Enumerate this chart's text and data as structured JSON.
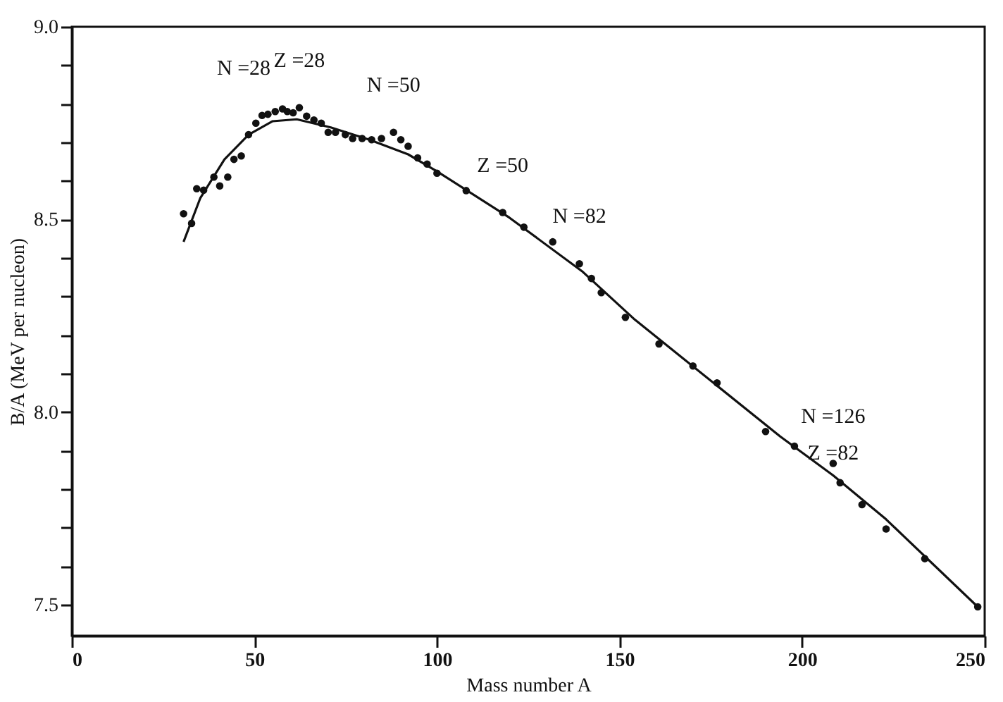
{
  "chart_data": {
    "type": "scatter",
    "xlabel": "Mass number A",
    "ylabel": "B/A (MeV per nucleon)",
    "xlim": [
      0,
      250
    ],
    "xticks": [
      0,
      50,
      100,
      150,
      200,
      250
    ],
    "ylim": [
      7.42,
      9.0
    ],
    "yticks": [
      7.5,
      {
        "value": 7.6,
        "label": null
      },
      {
        "value": 7.7,
        "label": null
      },
      {
        "value": 7.8,
        "label": null
      },
      {
        "value": 7.9,
        "label": null
      },
      "8.0",
      {
        "value": 8.1,
        "label": null
      },
      {
        "value": 8.2,
        "label": null
      },
      {
        "value": 8.3,
        "label": null
      },
      {
        "value": 8.4,
        "label": null
      },
      8.5,
      {
        "value": 8.6,
        "label": null
      },
      {
        "value": 8.7,
        "label": null
      },
      {
        "value": 8.8,
        "label": null
      },
      {
        "value": 8.9,
        "label": null
      },
      "9.0"
    ],
    "grid": false,
    "series": [
      {
        "type": "scatter",
        "marker": "circle",
        "color": "#111111",
        "x": [
          30.6,
          32.8,
          34.2,
          36.1,
          38.9,
          40.5,
          42.7,
          44.4,
          46.4,
          48.4,
          50.4,
          52.1,
          53.7,
          55.7,
          57.7,
          59,
          60.6,
          62.3,
          64.3,
          66.3,
          68.3,
          70.2,
          72.2,
          74.9,
          76.9,
          79.5,
          82.1,
          84.8,
          88.1,
          90.1,
          92.1,
          94.7,
          97.3,
          100,
          108,
          118,
          123.8,
          131.7,
          139,
          142.3,
          145,
          151.6,
          160.8,
          170.1,
          176.7,
          190,
          197.9,
          208.5,
          210.4,
          216.4,
          223,
          233.6,
          248.1
        ],
        "values": [
          8.515,
          8.49,
          8.58,
          8.576,
          8.61,
          8.587,
          8.61,
          8.656,
          8.665,
          8.72,
          8.75,
          8.77,
          8.773,
          8.78,
          8.787,
          8.78,
          8.777,
          8.79,
          8.768,
          8.758,
          8.75,
          8.726,
          8.726,
          8.72,
          8.71,
          8.71,
          8.707,
          8.71,
          8.726,
          8.707,
          8.69,
          8.66,
          8.644,
          8.62,
          8.575,
          8.518,
          8.48,
          8.442,
          8.385,
          8.347,
          8.31,
          8.246,
          8.177,
          8.12,
          8.076,
          7.95,
          7.912,
          7.867,
          7.817,
          7.76,
          7.697,
          7.62,
          7.495
        ]
      },
      {
        "type": "line",
        "line_style": "solid",
        "color": "#111111",
        "x": [
          30.6,
          35.2,
          41.8,
          48.4,
          55,
          61.6,
          70.9,
          81.5,
          92.1,
          100,
          119.8,
          139.7,
          154.2,
          194,
          208.5,
          223,
          248.1
        ],
        "values": [
          8.442,
          8.556,
          8.656,
          8.72,
          8.755,
          8.76,
          8.739,
          8.707,
          8.669,
          8.625,
          8.505,
          8.366,
          8.24,
          7.937,
          7.836,
          7.722,
          7.495
        ]
      }
    ],
    "annotations": [
      {
        "text": "N =28",
        "x": 52.1,
        "y": 8.77
      },
      {
        "text": "Z =28",
        "x": 62.3,
        "y": 8.79
      },
      {
        "text": "N =50",
        "x": 88.1,
        "y": 8.726
      },
      {
        "text": "Z =50",
        "x": 118,
        "y": 8.518
      },
      {
        "text": "N =82",
        "x": 139,
        "y": 8.385
      },
      {
        "text": "N =126\nZ =82",
        "x": 208.5,
        "y": 7.867
      }
    ]
  }
}
